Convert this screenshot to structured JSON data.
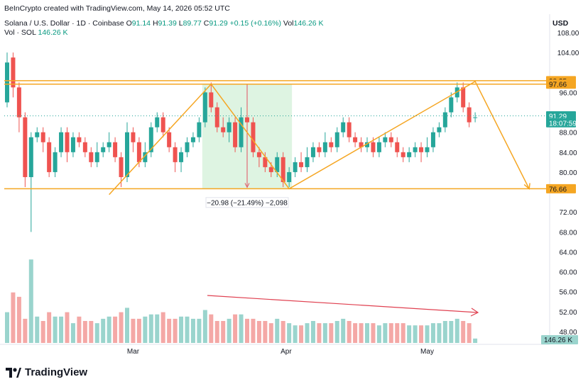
{
  "watermark": "BeInCrypto created with TradingView.com, May 14, 2026 05:52 UTC",
  "symbol": {
    "name": "Solana / U.S. Dollar · 1D · Coinbase",
    "o_label": "O",
    "o": "91.14",
    "h_label": "H",
    "h": "91.39",
    "l_label": "L",
    "l": "89.77",
    "c_label": "C",
    "c": "91.29",
    "change": "+0.15 (+0.16%)",
    "vol_label": "Vol",
    "vol": "146.26 K"
  },
  "vol_line": {
    "label": "Vol · SOL",
    "value": "146.26 K"
  },
  "currency": "USD",
  "brand": "TradingView",
  "colors": {
    "up": "#26a69a",
    "down": "#ef5350",
    "pattern": "#f5a623",
    "volume_arrow": "#e04050",
    "measure_fill": "#d8f2dd"
  },
  "chart_data": {
    "type": "candlestick",
    "y_ticks": [
      "108.00",
      "104.00",
      "96.00",
      "88.00",
      "84.00",
      "80.00",
      "72.00",
      "68.00",
      "64.00",
      "60.00",
      "56.00",
      "52.00",
      "48.00"
    ],
    "x_ticks": [
      "Mar",
      "Apr",
      "May"
    ],
    "price_badges": [
      {
        "label": "98.35",
        "color": "#f5a623",
        "text": "dark",
        "value": 98.35
      },
      {
        "label": "97.66",
        "color": "#f5a623",
        "text": "dark",
        "value": 97.66
      },
      {
        "label": "91.29",
        "color": "#26a69a",
        "text": "light",
        "value": 91.29
      },
      {
        "label": "18:07:59",
        "color": "#26a69a",
        "text": "light",
        "value": 89.9
      },
      {
        "label": "76.66",
        "color": "#f5a623",
        "text": "dark",
        "value": 76.66
      }
    ],
    "volume_badge": "146.26 K",
    "measure_label": "−20.98 (−21.49%) −2,098",
    "support": 76.66,
    "resistance_upper": 98.35,
    "resistance_lower": 97.66,
    "candles": [
      [
        94,
        102,
        104,
        93
      ],
      [
        103,
        97,
        104,
        95
      ],
      [
        97,
        91,
        98,
        88
      ],
      [
        91,
        79,
        92,
        77
      ],
      [
        79,
        87,
        88,
        68
      ],
      [
        87,
        88,
        89,
        86
      ],
      [
        88,
        86,
        89,
        84
      ],
      [
        86,
        80,
        87,
        79
      ],
      [
        80,
        84,
        85,
        79
      ],
      [
        84,
        88,
        89,
        83
      ],
      [
        88,
        84,
        89,
        82
      ],
      [
        84,
        87,
        88,
        83
      ],
      [
        87,
        86,
        88,
        85
      ],
      [
        86,
        84,
        87,
        83
      ],
      [
        84,
        82,
        85,
        81
      ],
      [
        82,
        84,
        86,
        81
      ],
      [
        84,
        85,
        86,
        83
      ],
      [
        85,
        86,
        88,
        84
      ],
      [
        86,
        83,
        87,
        82
      ],
      [
        83,
        79,
        84,
        77
      ],
      [
        79,
        88,
        90,
        78
      ],
      [
        88,
        86,
        89,
        84
      ],
      [
        86,
        82,
        87,
        81
      ],
      [
        82,
        84,
        86,
        81
      ],
      [
        84,
        89,
        90,
        83
      ],
      [
        89,
        91,
        92,
        88
      ],
      [
        91,
        88,
        92,
        87
      ],
      [
        88,
        85,
        89,
        84
      ],
      [
        85,
        82,
        86,
        80
      ],
      [
        82,
        84,
        85,
        80
      ],
      [
        84,
        86,
        87,
        83
      ],
      [
        86,
        87,
        88,
        85
      ],
      [
        87,
        90,
        91,
        86
      ],
      [
        90,
        96,
        97,
        89
      ],
      [
        96,
        93,
        98,
        92
      ],
      [
        93,
        89,
        94,
        88
      ],
      [
        89,
        88,
        91,
        87
      ],
      [
        88,
        90,
        91,
        86
      ],
      [
        90,
        85,
        91,
        84
      ],
      [
        85,
        91,
        93,
        84
      ],
      [
        91,
        90,
        93,
        88
      ],
      [
        90,
        84,
        91,
        83
      ],
      [
        84,
        83,
        85,
        81
      ],
      [
        83,
        81,
        84,
        80
      ],
      [
        81,
        80,
        82,
        79
      ],
      [
        80,
        83,
        84,
        79
      ],
      [
        83,
        78,
        84,
        77
      ],
      [
        78,
        80,
        81,
        77
      ],
      [
        80,
        82,
        83,
        79
      ],
      [
        82,
        81,
        84,
        80
      ],
      [
        81,
        83,
        85,
        80
      ],
      [
        83,
        85,
        86,
        82
      ],
      [
        85,
        84,
        86,
        83
      ],
      [
        84,
        86,
        88,
        83
      ],
      [
        86,
        85,
        87,
        84
      ],
      [
        85,
        88,
        89,
        84
      ],
      [
        88,
        90,
        91,
        87
      ],
      [
        90,
        87,
        91,
        86
      ],
      [
        87,
        86,
        88,
        85
      ],
      [
        86,
        85,
        87,
        84
      ],
      [
        85,
        86,
        87,
        84
      ],
      [
        86,
        84,
        87,
        83
      ],
      [
        84,
        86,
        87,
        83
      ],
      [
        86,
        87,
        88,
        85
      ],
      [
        87,
        86,
        88,
        85
      ],
      [
        86,
        84,
        87,
        83
      ],
      [
        84,
        83,
        85,
        82
      ],
      [
        83,
        84,
        85,
        82
      ],
      [
        84,
        85,
        86,
        83
      ],
      [
        85,
        84,
        86,
        82
      ],
      [
        84,
        85,
        87,
        83
      ],
      [
        85,
        88,
        89,
        84
      ],
      [
        88,
        89,
        90,
        87
      ],
      [
        89,
        92,
        93,
        88
      ],
      [
        92,
        95,
        96,
        91
      ],
      [
        95,
        97,
        98,
        94
      ],
      [
        97,
        93,
        98,
        92
      ],
      [
        93,
        90,
        94,
        89
      ],
      [
        91,
        91,
        92,
        90
      ]
    ],
    "volumes": [
      14,
      23,
      21,
      11,
      38,
      12,
      10,
      14,
      12,
      12,
      14,
      9,
      12,
      10,
      10,
      9,
      11,
      12,
      12,
      14,
      16,
      11,
      11,
      12,
      13,
      13,
      14,
      11,
      11,
      12,
      12,
      11,
      11,
      15,
      13,
      10,
      10,
      11,
      13,
      13,
      11,
      11,
      10,
      10,
      9,
      11,
      10,
      9,
      8,
      8,
      9,
      10,
      9,
      9,
      9,
      10,
      11,
      10,
      9,
      9,
      9,
      9,
      8,
      9,
      9,
      9,
      9,
      8,
      8,
      8,
      8,
      9,
      9,
      10,
      10,
      11,
      10,
      9,
      2
    ]
  }
}
